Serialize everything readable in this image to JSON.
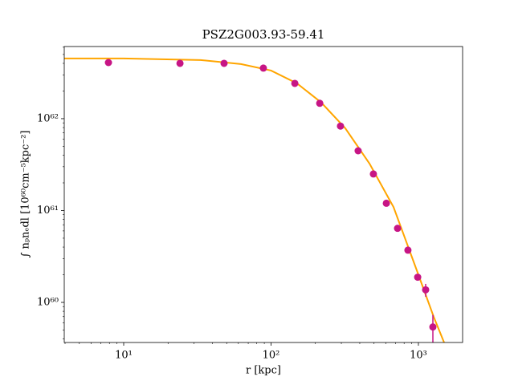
{
  "chart_data": {
    "type": "scatter",
    "title": "PSZ2G003.93-59.41",
    "x_label": "r [kpc]",
    "y_label": "∫ nₚnₑdl [10⁶⁰cm⁻⁵kpc⁻²]",
    "xscale": "log",
    "yscale": "log",
    "xlim": [
      3.95,
      1995
    ],
    "ylim": [
      3.66e+59,
      6.1e+62
    ],
    "xticks": [
      {
        "value": 10,
        "label": "10¹"
      },
      {
        "value": 100,
        "label": "10²"
      },
      {
        "value": 1000,
        "label": "10³"
      }
    ],
    "yticks": [
      {
        "value": 1e+60,
        "label": "10⁶⁰"
      },
      {
        "value": 1e+61,
        "label": "10⁶¹"
      },
      {
        "value": 1e+62,
        "label": "10⁶²"
      }
    ],
    "xminorticks": [
      4,
      5,
      6,
      7,
      8,
      9,
      20,
      30,
      40,
      50,
      60,
      70,
      80,
      90,
      200,
      300,
      400,
      500,
      600,
      700,
      800,
      900
    ],
    "yminorticks": [
      4e+59,
      5e+59,
      6e+59,
      7e+59,
      8e+59,
      9e+59,
      2e+60,
      3e+60,
      4e+60,
      5e+60,
      6e+60,
      7e+60,
      8e+60,
      9e+60,
      2e+61,
      3e+61,
      4e+61,
      5e+61,
      6e+61,
      7e+61,
      8e+61,
      9e+61,
      2e+62,
      3e+62,
      4e+62,
      5e+62,
      6e+62
    ],
    "series": [
      {
        "style": "points",
        "color": "#c71585",
        "x": [
          7.88,
          24.1,
          48.0,
          88.7,
          145,
          214,
          296,
          390,
          495,
          606,
          722,
          849,
          989,
          1120,
          1254
        ],
        "values": [
          4.08e+62,
          4e+62,
          4e+62,
          3.55e+62,
          2.42e+62,
          1.47e+62,
          8.3e+61,
          4.47e+61,
          2.5e+61,
          1.2e+61,
          6.4e+60,
          3.7e+60,
          1.88e+60,
          1.37e+60,
          5.4e+59
        ],
        "errors": [
          0,
          0,
          0,
          0,
          0,
          0,
          0,
          0,
          0,
          0,
          0,
          0,
          1e+59,
          2.2e+59,
          1.9e+59
        ]
      },
      {
        "style": "line",
        "color": "#ffa500",
        "x": [
          3.95,
          10,
          33.3,
          62.5,
          100,
          150,
          219,
          319,
          466,
          678,
          989,
          1270,
          1494
        ],
        "values": [
          4.52e+62,
          4.52e+62,
          4.35e+62,
          3.93e+62,
          3.34e+62,
          2.42e+62,
          1.5e+62,
          7.86e+61,
          3.24e+61,
          1.09e+61,
          2.1e+60,
          6.97e+59,
          3.66e+59
        ]
      }
    ]
  }
}
